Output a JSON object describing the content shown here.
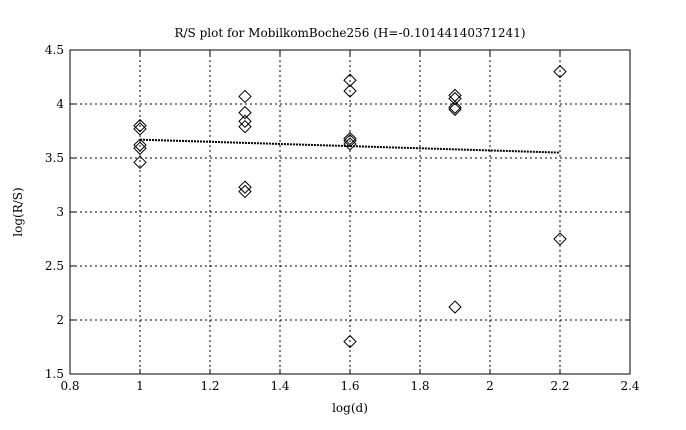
{
  "chart_data": {
    "type": "scatter",
    "title": "R/S plot for MobilkomBoche256 (H=-0.10144140371241)",
    "xlabel": "log(d)",
    "ylabel": "log(R/S)",
    "xlim": [
      0.8,
      2.4
    ],
    "ylim": [
      1.5,
      4.5
    ],
    "xticks": [
      "0.8",
      "1",
      "1.2",
      "1.4",
      "1.6",
      "1.8",
      "2",
      "2.2",
      "2.4"
    ],
    "yticks": [
      "1.5",
      "2",
      "2.5",
      "3",
      "3.5",
      "4",
      "4.5"
    ],
    "grid": true,
    "marker": "diamond",
    "points": [
      [
        1,
        3.8
      ],
      [
        1,
        3.77
      ],
      [
        1,
        3.62
      ],
      [
        1,
        3.59
      ],
      [
        1,
        3.46
      ],
      [
        1.3,
        4.07
      ],
      [
        1.3,
        3.92
      ],
      [
        1.3,
        3.84
      ],
      [
        1.3,
        3.79
      ],
      [
        1.3,
        3.23
      ],
      [
        1.3,
        3.19
      ],
      [
        1.6,
        4.22
      ],
      [
        1.6,
        4.12
      ],
      [
        1.6,
        3.68
      ],
      [
        1.6,
        3.66
      ],
      [
        1.6,
        3.63
      ],
      [
        1.6,
        1.8
      ],
      [
        1.9,
        4.08
      ],
      [
        1.9,
        4.05
      ],
      [
        1.9,
        3.97
      ],
      [
        1.9,
        3.95
      ],
      [
        1.9,
        2.12
      ],
      [
        2.2,
        4.3
      ],
      [
        2.2,
        2.75
      ]
    ],
    "fit_line": {
      "x": [
        1,
        2.2
      ],
      "y": [
        3.67,
        3.55
      ]
    }
  }
}
